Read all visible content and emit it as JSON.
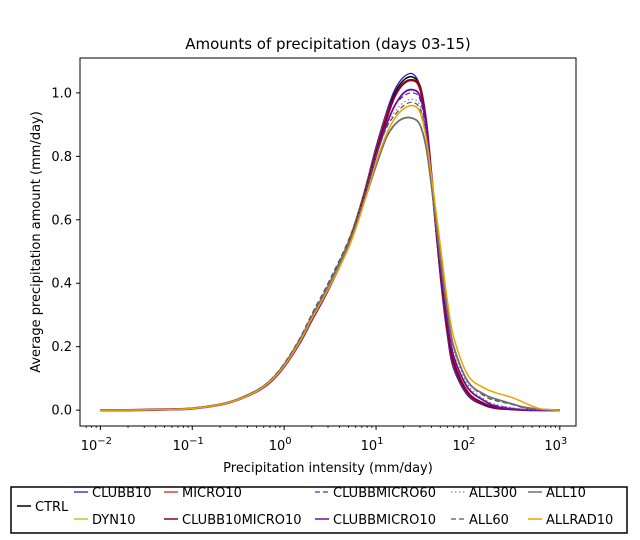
{
  "chart_data": {
    "type": "line",
    "title": "Amounts of precipitation (days 03-15)",
    "xlabel": "Precipitation intensity (mm/day)",
    "ylabel": "Average precipitation amount (mm/day)",
    "x_scale": "log",
    "xlim": [
      0.006,
      1500
    ],
    "ylim": [
      -0.05,
      1.11
    ],
    "x_ticks": [
      {
        "value": 0.01,
        "base": "10",
        "exp": "−2"
      },
      {
        "value": 0.1,
        "base": "10",
        "exp": "−1"
      },
      {
        "value": 1,
        "base": "10",
        "exp": "0"
      },
      {
        "value": 10,
        "base": "10",
        "exp": "1"
      },
      {
        "value": 100,
        "base": "10",
        "exp": "2"
      },
      {
        "value": 1000,
        "base": "10",
        "exp": "3"
      }
    ],
    "y_ticks": [
      {
        "value": 0.0,
        "label": "0.0"
      },
      {
        "value": 0.2,
        "label": "0.2"
      },
      {
        "value": 0.4,
        "label": "0.4"
      },
      {
        "value": 0.6,
        "label": "0.6"
      },
      {
        "value": 0.8,
        "label": "0.8"
      },
      {
        "value": 1.0,
        "label": "1.0"
      }
    ],
    "grid": false,
    "legend_position": "bottom",
    "x": [
      0.01,
      0.02,
      0.05,
      0.1,
      0.2,
      0.3,
      0.5,
      0.7,
      1,
      1.5,
      2,
      3,
      5,
      7,
      10,
      13,
      16,
      20,
      25,
      30,
      35,
      40,
      50,
      60,
      70,
      100,
      150,
      200,
      300,
      400,
      600,
      1000
    ],
    "series": [
      {
        "name": "CTRL",
        "color": "#000000",
        "dash": "solid",
        "width": 1.5,
        "values": [
          0,
          0,
          0.002,
          0.005,
          0.018,
          0.032,
          0.06,
          0.09,
          0.14,
          0.22,
          0.29,
          0.39,
          0.53,
          0.66,
          0.82,
          0.93,
          1.0,
          1.04,
          1.05,
          1.02,
          0.9,
          0.72,
          0.43,
          0.24,
          0.14,
          0.05,
          0.02,
          0.01,
          0.003,
          0.001,
          0,
          0
        ]
      },
      {
        "name": "CLUBB10",
        "color": "#2020c0",
        "dash": "solid",
        "width": 1.3,
        "values": [
          0,
          0,
          0.002,
          0.005,
          0.018,
          0.033,
          0.062,
          0.092,
          0.145,
          0.225,
          0.295,
          0.39,
          0.53,
          0.66,
          0.83,
          0.94,
          1.01,
          1.05,
          1.06,
          1.02,
          0.9,
          0.72,
          0.42,
          0.23,
          0.13,
          0.045,
          0.015,
          0.005,
          0.002,
          0.001,
          0,
          0
        ]
      },
      {
        "name": "DYN10",
        "color": "#c8b400",
        "dash": "solid",
        "width": 1.3,
        "values": [
          0,
          0,
          0.002,
          0.005,
          0.017,
          0.031,
          0.059,
          0.089,
          0.14,
          0.22,
          0.29,
          0.385,
          0.53,
          0.66,
          0.82,
          0.93,
          0.99,
          1.03,
          1.04,
          1.01,
          0.9,
          0.72,
          0.44,
          0.25,
          0.15,
          0.055,
          0.02,
          0.008,
          0.003,
          0.001,
          0,
          0
        ]
      },
      {
        "name": "MICRO10",
        "color": "#e02020",
        "dash": "solid",
        "width": 1.3,
        "values": [
          0,
          0,
          0.002,
          0.005,
          0.018,
          0.032,
          0.06,
          0.09,
          0.14,
          0.22,
          0.29,
          0.385,
          0.525,
          0.655,
          0.82,
          0.93,
          0.99,
          1.03,
          1.04,
          1.01,
          0.9,
          0.72,
          0.43,
          0.24,
          0.14,
          0.05,
          0.018,
          0.007,
          0.002,
          0.001,
          0,
          0
        ]
      },
      {
        "name": "CLUBB10MICRO10",
        "color": "#8b0020",
        "dash": "solid",
        "width": 2.4,
        "values": [
          0,
          0,
          0.002,
          0.005,
          0.017,
          0.031,
          0.059,
          0.088,
          0.138,
          0.216,
          0.285,
          0.38,
          0.52,
          0.65,
          0.81,
          0.92,
          0.99,
          1.03,
          1.04,
          1.02,
          0.91,
          0.74,
          0.45,
          0.26,
          0.15,
          0.055,
          0.02,
          0.008,
          0.003,
          0.001,
          0,
          0
        ]
      },
      {
        "name": "CLUBBMICRO60",
        "color": "#6a1fb0",
        "dash": "dashed",
        "width": 1.2,
        "values": [
          0,
          0,
          0.002,
          0.005,
          0.018,
          0.032,
          0.06,
          0.09,
          0.14,
          0.22,
          0.29,
          0.385,
          0.52,
          0.645,
          0.8,
          0.9,
          0.96,
          0.99,
          1.0,
          0.98,
          0.88,
          0.72,
          0.45,
          0.27,
          0.17,
          0.07,
          0.03,
          0.015,
          0.006,
          0.002,
          0.001,
          0
        ]
      },
      {
        "name": "CLUBBMICRO10",
        "color": "#6a0dad",
        "dash": "solid",
        "width": 1.8,
        "values": [
          0,
          0,
          0.002,
          0.005,
          0.017,
          0.031,
          0.058,
          0.087,
          0.137,
          0.215,
          0.283,
          0.377,
          0.515,
          0.64,
          0.8,
          0.9,
          0.96,
          1.0,
          1.01,
          0.99,
          0.9,
          0.74,
          0.47,
          0.28,
          0.17,
          0.07,
          0.03,
          0.012,
          0.004,
          0.001,
          0,
          0
        ]
      },
      {
        "name": "ALL300",
        "color": "#808080",
        "dash": "dotted",
        "width": 1.2,
        "values": [
          0,
          0,
          0.002,
          0.005,
          0.018,
          0.033,
          0.062,
          0.093,
          0.145,
          0.228,
          0.3,
          0.395,
          0.53,
          0.65,
          0.8,
          0.89,
          0.94,
          0.97,
          0.98,
          0.96,
          0.87,
          0.73,
          0.48,
          0.3,
          0.19,
          0.08,
          0.035,
          0.018,
          0.008,
          0.003,
          0.001,
          0
        ]
      },
      {
        "name": "ALL60",
        "color": "#505060",
        "dash": "dashed",
        "width": 1.2,
        "values": [
          0,
          0,
          0.002,
          0.005,
          0.018,
          0.033,
          0.063,
          0.094,
          0.147,
          0.23,
          0.303,
          0.4,
          0.535,
          0.655,
          0.8,
          0.89,
          0.93,
          0.96,
          0.97,
          0.95,
          0.87,
          0.73,
          0.49,
          0.31,
          0.2,
          0.09,
          0.045,
          0.03,
          0.018,
          0.008,
          0.002,
          0
        ]
      },
      {
        "name": "ALL10",
        "color": "#707070",
        "dash": "solid",
        "width": 1.8,
        "values": [
          0,
          0,
          0.002,
          0.005,
          0.018,
          0.032,
          0.061,
          0.092,
          0.143,
          0.225,
          0.295,
          0.39,
          0.52,
          0.635,
          0.77,
          0.86,
          0.9,
          0.92,
          0.92,
          0.9,
          0.83,
          0.71,
          0.48,
          0.31,
          0.2,
          0.09,
          0.05,
          0.035,
          0.02,
          0.01,
          0.003,
          0
        ]
      },
      {
        "name": "ALLRAD10",
        "color": "#f0a000",
        "dash": "solid",
        "width": 1.5,
        "values": [
          0,
          0,
          0.002,
          0.005,
          0.017,
          0.031,
          0.059,
          0.089,
          0.139,
          0.218,
          0.288,
          0.38,
          0.51,
          0.63,
          0.78,
          0.87,
          0.92,
          0.95,
          0.96,
          0.94,
          0.86,
          0.74,
          0.52,
          0.34,
          0.23,
          0.11,
          0.07,
          0.055,
          0.04,
          0.025,
          0.005,
          0
        ]
      }
    ]
  },
  "legend": {
    "items": [
      "CTRL",
      "CLUBB10",
      "DYN10",
      "MICRO10",
      "CLUBB10MICRO10",
      "CLUBBMICRO60",
      "CLUBBMICRO10",
      "ALL300",
      "ALL60",
      "ALL10",
      "ALLRAD10"
    ]
  }
}
